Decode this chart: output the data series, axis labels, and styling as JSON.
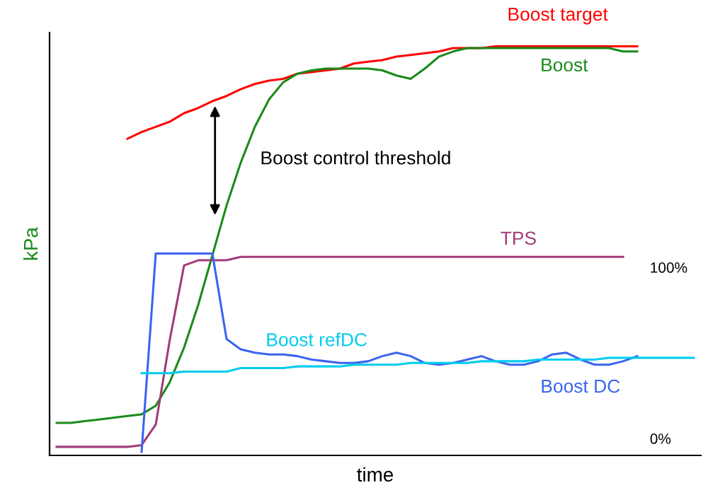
{
  "chart_data": {
    "type": "line",
    "xlabel": "time",
    "ylabel": "kPa",
    "relative": false,
    "categories": [
      null,
      null,
      null,
      null,
      null,
      null,
      null,
      null,
      null,
      null,
      null,
      null,
      null,
      null,
      null,
      null,
      null,
      null,
      null,
      null,
      null,
      null,
      null,
      null,
      null,
      null,
      null,
      null,
      null,
      null,
      null,
      null,
      null,
      null,
      null,
      null,
      null,
      null,
      null,
      null,
      null,
      null,
      null,
      null,
      null,
      null
    ],
    "series": [
      {
        "name": "Boost target",
        "color": "#ff0000",
        "values": [
          null,
          null,
          null,
          null,
          null,
          176,
          180,
          183,
          186,
          191,
          194,
          198,
          201,
          205,
          208,
          210,
          211,
          214,
          215,
          216,
          217,
          220,
          221,
          222,
          224,
          225,
          226,
          227,
          229,
          229,
          229,
          230,
          230,
          230,
          230,
          230,
          230,
          230,
          230,
          230,
          230,
          230,
          null,
          null,
          null,
          null
        ]
      },
      {
        "name": "Boost",
        "color": "#1a8a1a",
        "values": [
          10,
          10,
          11,
          12,
          13,
          14,
          15,
          20,
          34,
          54,
          79,
          108,
          137,
          162,
          183,
          199,
          209,
          214,
          216,
          217,
          217,
          217,
          217,
          216,
          213,
          211,
          217,
          224,
          227,
          229,
          229,
          229,
          229,
          229,
          229,
          229,
          229,
          229,
          229,
          229,
          227,
          227,
          null,
          null,
          null,
          null
        ]
      },
      {
        "name": "TPS",
        "color": "#a03c78",
        "values": [
          -4,
          -4,
          -4,
          -4,
          -4,
          -4,
          -3,
          9,
          59,
          102,
          105,
          105,
          105,
          107,
          107,
          107,
          107,
          107,
          107,
          107,
          107,
          107,
          107,
          107,
          107,
          107,
          107,
          107,
          107,
          107,
          107,
          107,
          107,
          107,
          107,
          107,
          107,
          107,
          107,
          107,
          107,
          null,
          null,
          null,
          null,
          null
        ]
      },
      {
        "name": "Boost DC",
        "color": "#3a64f0",
        "values": [
          null,
          null,
          null,
          null,
          null,
          null,
          -7,
          109,
          109,
          109,
          109,
          109,
          59,
          53,
          51,
          50,
          50,
          49,
          47,
          46,
          45,
          45,
          46,
          49,
          51,
          49,
          45,
          44,
          45,
          47,
          49,
          46,
          44,
          44,
          46,
          50,
          51,
          47,
          44,
          44,
          46,
          49,
          null,
          null,
          null,
          null
        ]
      },
      {
        "name": "Boost refDC",
        "color": "#00ccee",
        "values": [
          null,
          null,
          null,
          null,
          null,
          null,
          39,
          39,
          39,
          40,
          40,
          40,
          40,
          42,
          42,
          42,
          42,
          43,
          43,
          43,
          43,
          44,
          44,
          44,
          44,
          45,
          45,
          45,
          45,
          45,
          46,
          46,
          46,
          46,
          47,
          47,
          47,
          47,
          47,
          48,
          48,
          48,
          48,
          48,
          48,
          48
        ]
      }
    ],
    "ylim": [
      -9,
      238
    ],
    "yticks": [
      {
        "value": 0,
        "label": "0%"
      },
      {
        "value": 100,
        "label": "100%"
      }
    ],
    "tick_labels": "y",
    "annotations": [
      "Boost control threshold"
    ]
  }
}
